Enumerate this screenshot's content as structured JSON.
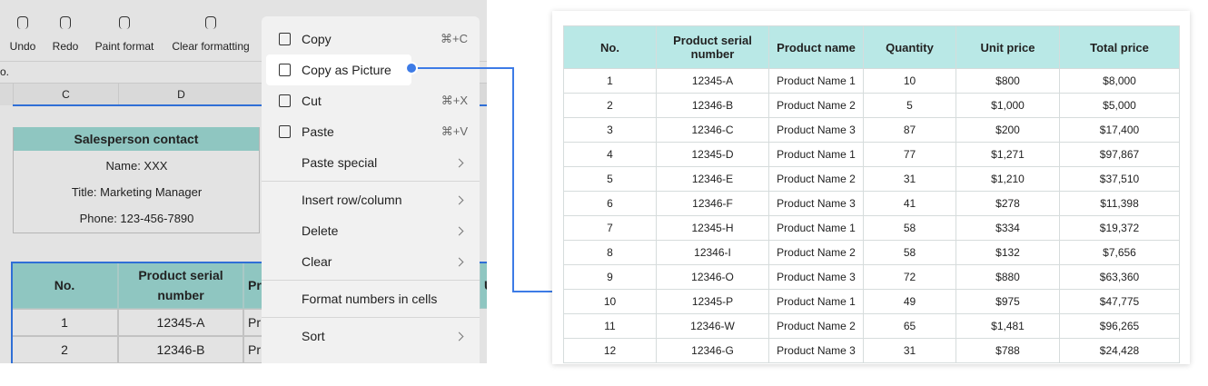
{
  "toolbar": {
    "buttons": [
      "Undo",
      "Redo",
      "Paint format",
      "Clear formatting"
    ]
  },
  "cell_ref": "o.",
  "column_headers": [
    "C",
    "D"
  ],
  "contact": {
    "title": "Salesperson contact",
    "lines": [
      "Name: XXX",
      "Title: Marketing Manager",
      "Phone: 123-456-7890"
    ]
  },
  "sheet_table": {
    "header": [
      "No.",
      "Product serial number",
      "Pr",
      "U"
    ],
    "rows": [
      [
        "1",
        "12345-A",
        "Pr"
      ],
      [
        "2",
        "12346-B",
        "Pr"
      ]
    ]
  },
  "menu": {
    "items": [
      {
        "label": "Copy",
        "shortcut": "⌘+C"
      },
      {
        "label": "Copy as Picture",
        "selected": true
      },
      {
        "label": "Cut",
        "shortcut": "⌘+X"
      },
      {
        "label": "Paste",
        "shortcut": "⌘+V"
      },
      {
        "label": "Paste special",
        "submenu": true,
        "separator_after": true
      },
      {
        "label": "Insert row/column",
        "submenu": true
      },
      {
        "label": "Delete",
        "submenu": true
      },
      {
        "label": "Clear",
        "submenu": true,
        "separator_after": true
      },
      {
        "label": "Format numbers in cells",
        "separator_after": true
      },
      {
        "label": "Sort",
        "submenu": true
      }
    ]
  },
  "picture_table": {
    "header": [
      "No.",
      "Product serial number",
      "Product name",
      "Quantity",
      "Unit price",
      "Total price"
    ],
    "rows": [
      [
        "1",
        "12345-A",
        "Product Name 1",
        "10",
        "$800",
        "$8,000"
      ],
      [
        "2",
        "12346-B",
        "Product Name 2",
        "5",
        "$1,000",
        "$5,000"
      ],
      [
        "3",
        "12346-C",
        "Product Name 3",
        "87",
        "$200",
        "$17,400"
      ],
      [
        "4",
        "12345-D",
        "Product Name 1",
        "77",
        "$1,271",
        "$97,867"
      ],
      [
        "5",
        "12346-E",
        "Product Name 2",
        "31",
        "$1,210",
        "$37,510"
      ],
      [
        "6",
        "12346-F",
        "Product Name 3",
        "41",
        "$278",
        "$11,398"
      ],
      [
        "7",
        "12345-H",
        "Product Name 1",
        "58",
        "$334",
        "$19,372"
      ],
      [
        "8",
        "12346-I",
        "Product Name 2",
        "58",
        "$132",
        "$7,656"
      ],
      [
        "9",
        "12346-O",
        "Product Name 3",
        "72",
        "$880",
        "$63,360"
      ],
      [
        "10",
        "12345-P",
        "Product Name 1",
        "49",
        "$975",
        "$47,775"
      ],
      [
        "11",
        "12346-W",
        "Product Name 2",
        "65",
        "$1,481",
        "$96,265"
      ],
      [
        "12",
        "12346-G",
        "Product Name 3",
        "31",
        "$788",
        "$24,428"
      ]
    ]
  }
}
